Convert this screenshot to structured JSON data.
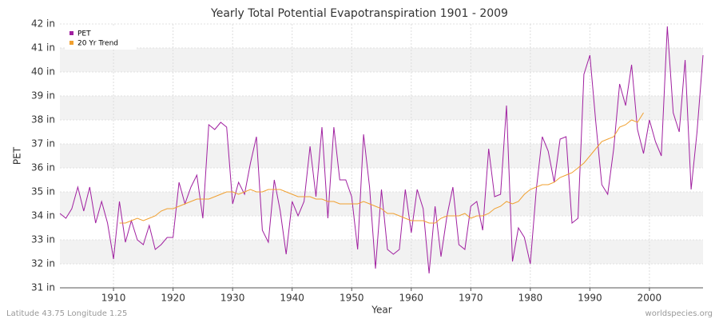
{
  "chart_data": {
    "type": "line",
    "title": "Yearly Total Potential Evapotranspiration 1901 - 2009",
    "x_label": "Year",
    "y_label": "PET",
    "footer_left": "Latitude 43.75 Longitude 1.25",
    "footer_right": "worldspecies.org",
    "x": [
      1901,
      1902,
      1903,
      1904,
      1905,
      1906,
      1907,
      1908,
      1909,
      1910,
      1911,
      1912,
      1913,
      1914,
      1915,
      1916,
      1917,
      1918,
      1919,
      1920,
      1921,
      1922,
      1923,
      1924,
      1925,
      1926,
      1927,
      1928,
      1929,
      1930,
      1931,
      1932,
      1933,
      1934,
      1935,
      1936,
      1937,
      1938,
      1939,
      1940,
      1941,
      1942,
      1943,
      1944,
      1945,
      1946,
      1947,
      1948,
      1949,
      1950,
      1951,
      1952,
      1953,
      1954,
      1955,
      1956,
      1957,
      1958,
      1959,
      1960,
      1961,
      1962,
      1963,
      1964,
      1965,
      1966,
      1967,
      1968,
      1969,
      1970,
      1971,
      1972,
      1973,
      1974,
      1975,
      1976,
      1977,
      1978,
      1979,
      1980,
      1981,
      1982,
      1983,
      1984,
      1985,
      1986,
      1987,
      1988,
      1989,
      1990,
      1991,
      1992,
      1993,
      1994,
      1995,
      1996,
      1997,
      1998,
      1999,
      2000,
      2001,
      2002,
      2003,
      2004,
      2005,
      2006,
      2007,
      2008,
      2009
    ],
    "series": [
      {
        "name": "PET",
        "color": "#a020a0",
        "values": [
          34.1,
          33.9,
          34.3,
          35.2,
          34.2,
          35.2,
          33.7,
          34.6,
          33.7,
          32.2,
          34.6,
          32.9,
          33.8,
          33.0,
          32.8,
          33.6,
          32.6,
          32.8,
          33.1,
          33.1,
          35.4,
          34.5,
          35.2,
          35.7,
          33.9,
          37.8,
          37.6,
          37.9,
          37.7,
          34.5,
          35.4,
          34.9,
          36.2,
          37.3,
          33.4,
          32.9,
          35.5,
          34.2,
          32.4,
          34.6,
          34.0,
          34.6,
          36.9,
          34.8,
          37.7,
          33.9,
          37.7,
          35.5,
          35.5,
          34.8,
          32.6,
          37.4,
          35.2,
          31.8,
          35.1,
          32.6,
          32.4,
          32.6,
          35.1,
          33.3,
          35.1,
          34.3,
          31.6,
          34.4,
          32.3,
          34.0,
          35.2,
          32.8,
          32.6,
          34.4,
          34.6,
          33.4,
          36.8,
          34.8,
          34.9,
          38.6,
          32.1,
          33.5,
          33.1,
          32.0,
          35.1,
          37.3,
          36.7,
          35.4,
          37.2,
          37.3,
          33.7,
          33.9,
          39.9,
          40.7,
          37.9,
          35.3,
          34.9,
          36.8,
          39.5,
          38.6,
          40.3,
          37.6,
          36.6,
          38.0,
          37.1,
          36.5,
          41.9,
          38.3,
          37.5,
          40.5,
          35.1,
          37.5,
          40.7
        ]
      },
      {
        "name": "20 Yr Trend",
        "color": "#f0a030",
        "values": [
          null,
          null,
          null,
          null,
          null,
          null,
          null,
          null,
          null,
          null,
          33.7,
          33.7,
          33.8,
          33.9,
          33.8,
          33.9,
          34.0,
          34.2,
          34.3,
          34.3,
          34.4,
          34.5,
          34.6,
          34.7,
          34.7,
          34.7,
          34.8,
          34.9,
          35.0,
          35.0,
          34.9,
          35.0,
          35.1,
          35.0,
          35.0,
          35.1,
          35.1,
          35.1,
          35.0,
          34.9,
          34.8,
          34.8,
          34.8,
          34.7,
          34.7,
          34.6,
          34.6,
          34.5,
          34.5,
          34.5,
          34.5,
          34.6,
          34.5,
          34.4,
          34.3,
          34.1,
          34.1,
          34.0,
          33.9,
          33.8,
          33.8,
          33.8,
          33.7,
          33.7,
          33.9,
          34.0,
          34.0,
          34.0,
          34.1,
          33.9,
          34.0,
          34.0,
          34.1,
          34.3,
          34.4,
          34.6,
          34.5,
          34.6,
          34.9,
          35.1,
          35.2,
          35.3,
          35.3,
          35.4,
          35.6,
          35.7,
          35.8,
          36.0,
          36.2,
          36.5,
          36.8,
          37.1,
          37.2,
          37.3,
          37.7,
          37.8,
          38.0,
          37.9,
          38.3,
          null,
          null,
          null,
          null,
          null,
          null,
          null,
          null,
          null,
          null
        ]
      }
    ],
    "xlim": [
      1901,
      2009
    ],
    "xticks": [
      1910,
      1920,
      1930,
      1940,
      1950,
      1960,
      1970,
      1980,
      1990,
      2000
    ],
    "ylim": [
      31,
      42
    ],
    "yticks": [
      {
        "value": 31,
        "label": "31 in"
      },
      {
        "value": 32,
        "label": "32 in"
      },
      {
        "value": 33,
        "label": "33 in"
      },
      {
        "value": 34,
        "label": "34 in"
      },
      {
        "value": 35,
        "label": "35 in"
      },
      {
        "value": 36,
        "label": "36 in"
      },
      {
        "value": 37,
        "label": "37 in"
      },
      {
        "value": 38,
        "label": "38 in"
      },
      {
        "value": 39,
        "label": "39 in"
      },
      {
        "value": 40,
        "label": "40 in"
      },
      {
        "value": 41,
        "label": "41 in"
      },
      {
        "value": 42,
        "label": "42 in"
      }
    ],
    "grid": true,
    "legend": "upper left"
  }
}
